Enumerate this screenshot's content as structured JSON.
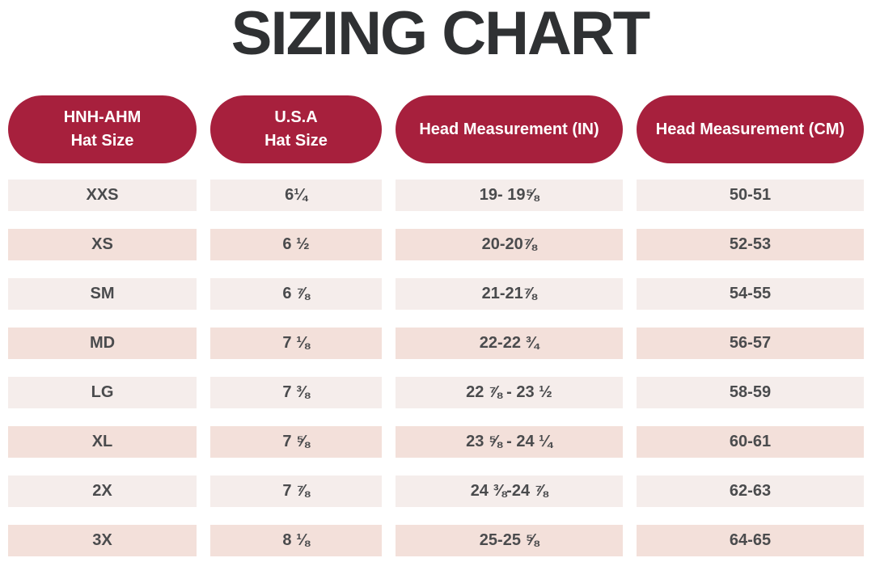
{
  "title": "SIZING CHART",
  "theme": {
    "pill_red": "#a7203d",
    "row_light": "#f5edeb",
    "row_pink": "#f3e0da",
    "text_dark": "#4a4b4d",
    "title_color": "#2f3133"
  },
  "headers": {
    "col1": "HNH-AHM\nHat Size",
    "col2": "U.S.A\nHat Size",
    "col3": "Head Measurement (IN)",
    "col4": "Head Measurement (CM)"
  },
  "chart_data": {
    "type": "table",
    "title": "SIZING CHART",
    "columns": [
      "HNH-AHM Hat Size",
      "U.S.A Hat Size",
      "Head Measurement (IN)",
      "Head Measurement (CM)"
    ],
    "rows": [
      [
        "XXS",
        "6¼",
        "19- 19⅝",
        "50-51"
      ],
      [
        "XS",
        "6 ½",
        "20-20⅞",
        "52-53"
      ],
      [
        "SM",
        "6 ⅞",
        "21-21⅞",
        "54-55"
      ],
      [
        "MD",
        "7 ⅛",
        "22-22 ¾",
        "56-57"
      ],
      [
        "LG",
        "7 ⅜",
        "22 ⅞ - 23 ½",
        "58-59"
      ],
      [
        "XL",
        "7 ⅝",
        "23 ⅝ - 24 ¼",
        "60-61"
      ],
      [
        "2X",
        "7 ⅞",
        "24 ⅜-24 ⅞",
        "62-63"
      ],
      [
        "3X",
        "8 ⅛",
        "25-25 ⅝",
        "64-65"
      ]
    ]
  }
}
